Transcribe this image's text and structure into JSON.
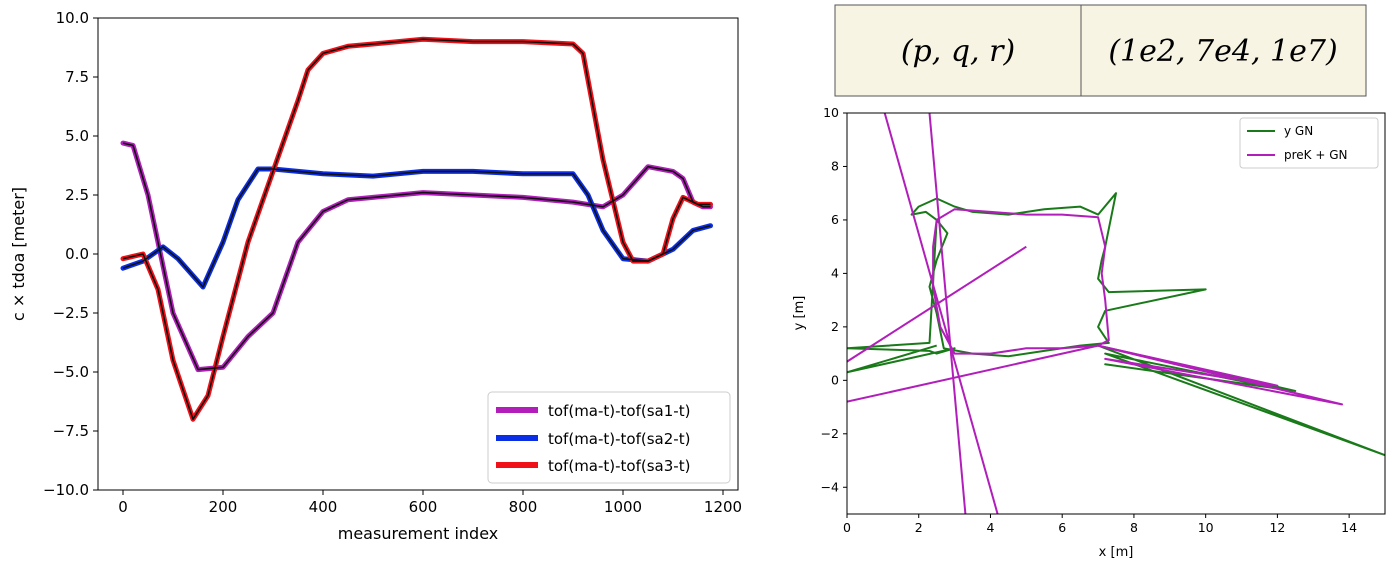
{
  "param_table": {
    "cells": [
      "(p, q, r)",
      "(1e2, 7e4, 1e7)"
    ],
    "fill": "#f7f4e4"
  },
  "chart_data": [
    {
      "type": "line",
      "title": "",
      "xlabel": "measurement index",
      "ylabel": "c × tdoa [meter]",
      "xlim": [
        -50,
        1230
      ],
      "ylim": [
        -10,
        10
      ],
      "xticks": [
        0,
        200,
        400,
        600,
        800,
        1000,
        1200
      ],
      "xtick_labels": [
        "0",
        "200",
        "400",
        "600",
        "800",
        "1000",
        "1200"
      ],
      "yticks": [
        -10,
        -7.5,
        -5,
        -2.5,
        0,
        2.5,
        5,
        7.5,
        10
      ],
      "ytick_labels": [
        "−10.0",
        "−7.5",
        "−5.0",
        "−2.5",
        "0.0",
        "2.5",
        "5.0",
        "7.5",
        "10.0"
      ],
      "grid": false,
      "legend_position": "lower-right",
      "series": [
        {
          "name": "tof(ma-t)-tof(sa1-t)",
          "color": "#b11eba",
          "x": [
            0,
            20,
            50,
            100,
            150,
            200,
            250,
            300,
            350,
            400,
            450,
            500,
            600,
            700,
            800,
            900,
            960,
            1000,
            1050,
            1100,
            1120,
            1140,
            1160,
            1175
          ],
          "y": [
            4.7,
            4.6,
            2.5,
            -2.5,
            -4.9,
            -4.8,
            -3.5,
            -2.5,
            0.5,
            1.8,
            2.3,
            2.4,
            2.6,
            2.5,
            2.4,
            2.2,
            2.0,
            2.5,
            3.7,
            3.5,
            3.2,
            2.2,
            2.0,
            2.0
          ]
        },
        {
          "name": "tof(ma-t)-tof(sa2-t)",
          "color": "#0a2ee6",
          "x": [
            0,
            40,
            80,
            110,
            160,
            200,
            230,
            270,
            300,
            350,
            400,
            500,
            600,
            700,
            800,
            900,
            930,
            960,
            1000,
            1050,
            1100,
            1140,
            1175
          ],
          "y": [
            -0.6,
            -0.3,
            0.3,
            -0.2,
            -1.4,
            0.5,
            2.3,
            3.6,
            3.6,
            3.5,
            3.4,
            3.3,
            3.5,
            3.5,
            3.4,
            3.4,
            2.5,
            1.0,
            -0.2,
            -0.3,
            0.2,
            1.0,
            1.2
          ]
        },
        {
          "name": "tof(ma-t)-tof(sa3-t)",
          "color": "#f01018",
          "x": [
            0,
            40,
            70,
            100,
            140,
            170,
            200,
            250,
            300,
            350,
            370,
            400,
            450,
            500,
            600,
            700,
            800,
            900,
            920,
            960,
            1000,
            1020,
            1050,
            1080,
            1100,
            1120,
            1150,
            1175
          ],
          "y": [
            -0.2,
            0.0,
            -1.5,
            -4.5,
            -7.0,
            -6.0,
            -3.5,
            0.5,
            3.5,
            6.5,
            7.8,
            8.5,
            8.8,
            8.9,
            9.1,
            9.0,
            9.0,
            8.9,
            8.5,
            4.0,
            0.5,
            -0.3,
            -0.3,
            0.0,
            1.5,
            2.4,
            2.1,
            2.1
          ]
        }
      ]
    },
    {
      "type": "line",
      "title": "",
      "xlabel": "x [m]",
      "ylabel": "y [m]",
      "xlim": [
        0,
        15
      ],
      "ylim": [
        -5,
        10
      ],
      "xticks": [
        0,
        2,
        4,
        6,
        8,
        10,
        12,
        14
      ],
      "xtick_labels": [
        "0",
        "2",
        "4",
        "6",
        "8",
        "10",
        "12",
        "14"
      ],
      "yticks": [
        -4,
        -2,
        0,
        2,
        4,
        6,
        8,
        10
      ],
      "ytick_labels": [
        "−4",
        "−2",
        "0",
        "2",
        "4",
        "6",
        "8",
        "10"
      ],
      "grid": false,
      "legend_position": "upper-right",
      "series": [
        {
          "name": "y GN",
          "color": "#1a7a1a",
          "x": [
            2.5,
            2.2,
            1.8,
            2.0,
            2.5,
            3.0,
            3.5,
            4.5,
            5.5,
            6.5,
            7.0,
            7.5,
            7.2,
            7.1,
            7.0,
            7.3,
            10.0,
            7.2,
            7.0,
            7.3,
            6.5,
            5.5,
            4.5,
            3.5,
            2.7,
            2.5,
            2.3,
            2.5,
            2.8,
            2.5,
            2.3,
            0.0,
            2.3,
            2.5,
            3.0,
            0.0,
            2.5
          ],
          "y": [
            6.0,
            6.3,
            6.2,
            6.5,
            6.8,
            6.5,
            6.3,
            6.2,
            6.4,
            6.5,
            6.2,
            7.0,
            5.0,
            4.5,
            3.8,
            3.3,
            3.4,
            2.6,
            2.0,
            1.4,
            1.3,
            1.1,
            0.9,
            1.0,
            1.2,
            2.5,
            3.5,
            4.5,
            5.5,
            6.0,
            1.4,
            1.2,
            1.1,
            1.0,
            1.2,
            0.3,
            1.3
          ]
        },
        {
          "name": "",
          "color": "#1a7a1a",
          "x": [
            7.0,
            15.0,
            7.2,
            12.0,
            7.2,
            12.5,
            7.0
          ],
          "y": [
            1.3,
            -2.8,
            1.0,
            -0.3,
            0.6,
            -0.4,
            1.3
          ]
        },
        {
          "name": "preK + GN",
          "color": "#b11eba",
          "x": [
            2.5,
            3.0,
            4.0,
            5.0,
            6.0,
            7.0,
            7.2,
            7.1,
            7.2,
            7.3,
            7.0,
            6.0,
            5.0,
            4.0,
            3.0,
            2.6,
            2.4,
            2.4,
            2.5
          ],
          "y": [
            6.0,
            6.4,
            6.3,
            6.2,
            6.2,
            6.1,
            5.0,
            4.0,
            3.0,
            1.5,
            1.3,
            1.2,
            1.2,
            1.0,
            1.0,
            2.0,
            3.5,
            5.0,
            6.0
          ]
        },
        {
          "name": "",
          "color": "#b11eba",
          "x": [
            7.0,
            13.8,
            7.2,
            12.0,
            7.0
          ],
          "y": [
            1.3,
            -0.9,
            0.8,
            -0.2,
            1.3
          ]
        },
        {
          "name": "",
          "color": "#b11eba",
          "x": [
            1.05,
            4.2
          ],
          "y": [
            10,
            -5
          ]
        },
        {
          "name": "",
          "color": "#b11eba",
          "x": [
            2.3,
            3.3
          ],
          "y": [
            10,
            -5
          ]
        },
        {
          "name": "",
          "color": "#b11eba",
          "x": [
            0.0,
            5.0
          ],
          "y": [
            0.7,
            5.0
          ]
        },
        {
          "name": "",
          "color": "#b11eba",
          "x": [
            0.0,
            7.0
          ],
          "y": [
            -0.8,
            1.3
          ]
        }
      ]
    }
  ]
}
